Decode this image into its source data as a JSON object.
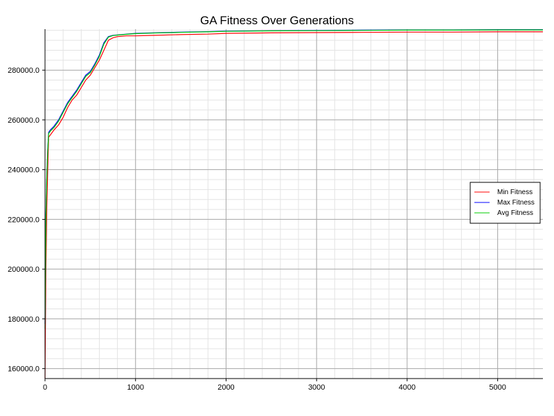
{
  "chart_data": {
    "type": "line",
    "title": "GA Fitness Over Generations",
    "xlabel": "",
    "ylabel": "",
    "xlim": [
      0,
      5500
    ],
    "ylim": [
      156000,
      296500
    ],
    "x_ticks": [
      0,
      1000,
      2000,
      3000,
      4000,
      5000
    ],
    "y_ticks": [
      160000,
      180000,
      200000,
      220000,
      240000,
      260000,
      280000
    ],
    "x_tick_labels": [
      "0",
      "1000",
      "2000",
      "3000",
      "4000",
      "5000"
    ],
    "y_tick_labels": [
      "160000.0",
      "180000.0",
      "200000.0",
      "220000.0",
      "240000.0",
      "260000.0",
      "280000.0"
    ],
    "grid": true,
    "minor_grid": true,
    "legend_position": "right",
    "series": [
      {
        "name": "Min Fitness",
        "color": "#ff0000",
        "x": [
          0,
          10,
          20,
          30,
          40,
          60,
          100,
          150,
          200,
          250,
          300,
          350,
          400,
          450,
          500,
          550,
          600,
          650,
          700,
          750,
          800,
          900,
          1000,
          1200,
          1500,
          1800,
          2000,
          2500,
          3000,
          3500,
          4000,
          4500,
          5000,
          5500
        ],
        "y": [
          156000,
          200000,
          225000,
          240000,
          253000,
          254000,
          256000,
          258000,
          261000,
          265000,
          268000,
          270000,
          273000,
          276000,
          278000,
          281000,
          284000,
          288000,
          292000,
          293000,
          293500,
          293800,
          293800,
          294000,
          294300,
          294500,
          294800,
          295000,
          295100,
          295200,
          295300,
          295300,
          295400,
          295400
        ]
      },
      {
        "name": "Max Fitness",
        "color": "#0000ff",
        "x": [
          0,
          10,
          20,
          30,
          40,
          60,
          100,
          150,
          200,
          250,
          300,
          350,
          400,
          450,
          500,
          550,
          600,
          650,
          700,
          750,
          800,
          900,
          1000,
          1200,
          1500,
          1800,
          2000,
          2500,
          3000,
          3500,
          4000,
          4500,
          5000,
          5500
        ],
        "y": [
          178000,
          222000,
          238000,
          248000,
          255000,
          256000,
          257500,
          260000,
          263500,
          267000,
          269500,
          272000,
          275000,
          278000,
          279500,
          282500,
          286000,
          291000,
          293500,
          294000,
          294200,
          294500,
          294800,
          295000,
          295300,
          295500,
          295700,
          295900,
          296000,
          296100,
          296200,
          296200,
          296300,
          296300
        ]
      },
      {
        "name": "Avg Fitness",
        "color": "#00cc00",
        "x": [
          0,
          10,
          20,
          30,
          40,
          60,
          100,
          150,
          200,
          250,
          300,
          350,
          400,
          450,
          500,
          550,
          600,
          650,
          700,
          750,
          800,
          900,
          1000,
          1200,
          1500,
          1800,
          2000,
          2500,
          3000,
          3500,
          4000,
          4500,
          5000,
          5500
        ],
        "y": [
          176000,
          220000,
          237000,
          247000,
          254500,
          255500,
          257000,
          259500,
          263000,
          266500,
          269000,
          271500,
          274500,
          277500,
          279000,
          282000,
          285500,
          290500,
          293300,
          293900,
          294100,
          294400,
          294700,
          294900,
          295200,
          295400,
          295600,
          295800,
          295900,
          296000,
          296100,
          296100,
          296200,
          296200
        ]
      }
    ]
  }
}
